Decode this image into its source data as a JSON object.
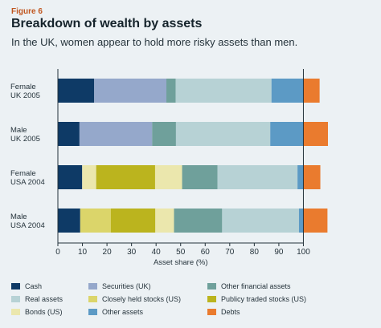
{
  "figure_label": "Figure 6",
  "title": "Breakdown of wealth by assets",
  "subtitle": "In the UK, women appear to hold more risky assets than men.",
  "chart_data": {
    "type": "bar",
    "orientation": "horizontal",
    "stacked": true,
    "categories": [
      "Female\nUK 2005",
      "Male\nUK 2005",
      "Female\nUSA 2004",
      "Male\nUSA 2004"
    ],
    "xlabel": "Asset share (%)",
    "xlim": [
      0,
      110
    ],
    "xticks": [
      0,
      10,
      20,
      30,
      40,
      50,
      60,
      70,
      80,
      90,
      100
    ],
    "grid": false,
    "legend_position": "bottom",
    "negative_series": "Debts",
    "series": [
      {
        "name": "Cash",
        "color": "#0e3a66",
        "values": [
          14.8,
          8.8,
          9.9,
          9.1
        ]
      },
      {
        "name": "Bonds (US)",
        "color": "#ebe7ad",
        "values": [
          0,
          0,
          5.7,
          0
        ]
      },
      {
        "name": "Securities (UK)",
        "color": "#95a8cb",
        "values": [
          29.4,
          29.6,
          0,
          0
        ]
      },
      {
        "name": "Closely held stocks (US)",
        "color": "#dbd56a",
        "values": [
          0,
          0,
          0,
          12.5
        ]
      },
      {
        "name": "Publicy traded stocks (US)",
        "color": "#bbb41e",
        "values": [
          0,
          0,
          24.0,
          18.1
        ]
      },
      {
        "name": "Bonds (US)",
        "color": "#ebe7ad",
        "values": [
          0,
          0,
          11.0,
          7.6
        ]
      },
      {
        "name": "Other financial assets",
        "color": "#6fa09b",
        "values": [
          3.8,
          9.7,
          14.4,
          19.6
        ]
      },
      {
        "name": "Real assets",
        "color": "#b7d2d5",
        "values": [
          39.0,
          38.4,
          32.6,
          31.3
        ]
      },
      {
        "name": "Other assets",
        "color": "#5c9ac5",
        "values": [
          13.0,
          13.5,
          2.4,
          1.9
        ]
      },
      {
        "name": "Debts",
        "color": "#ea7b2e",
        "values": [
          6.6,
          10.0,
          6.9,
          9.8
        ]
      }
    ],
    "legend": [
      {
        "label": "Cash",
        "color": "#0e3a66"
      },
      {
        "label": "Securities (UK)",
        "color": "#95a8cb"
      },
      {
        "label": "Other financial assets",
        "color": "#6fa09b"
      },
      {
        "label": "Real assets",
        "color": "#b7d2d5"
      },
      {
        "label": "Closely held stocks (US)",
        "color": "#dbd56a"
      },
      {
        "label": "Publicy traded stocks (US)",
        "color": "#bbb41e"
      },
      {
        "label": "Bonds (US)",
        "color": "#ebe7ad"
      },
      {
        "label": "Other assets",
        "color": "#5c9ac5"
      },
      {
        "label": "Debts",
        "color": "#ea7b2e"
      }
    ]
  }
}
